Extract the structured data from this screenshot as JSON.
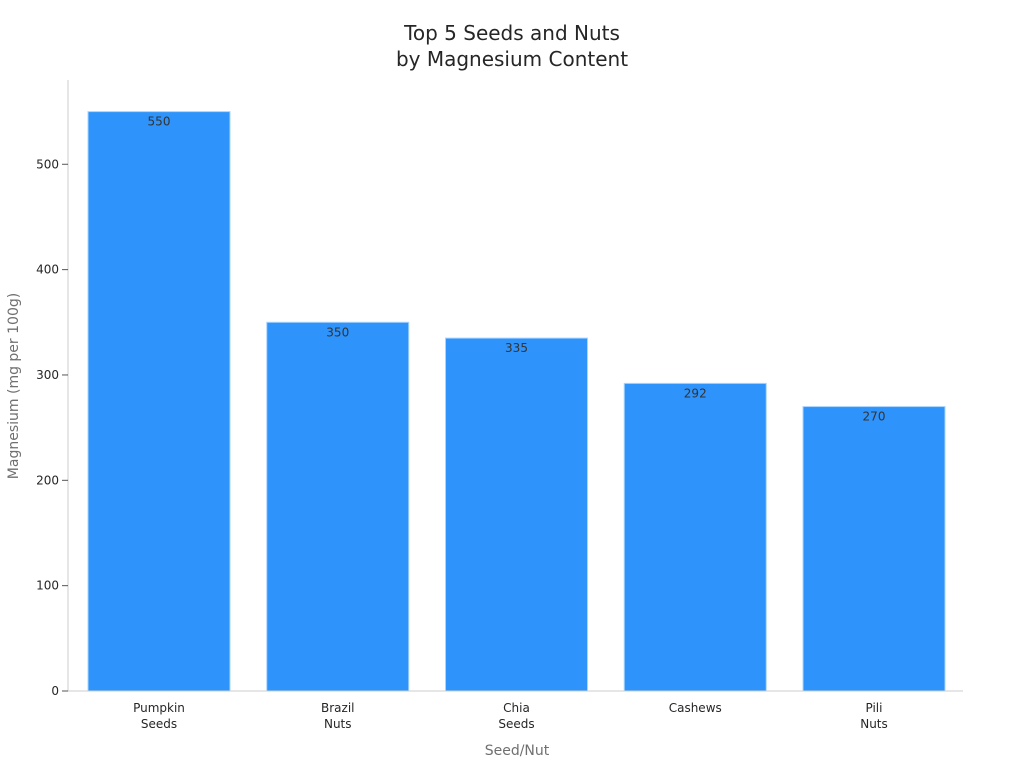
{
  "chart_data": {
    "type": "bar",
    "title": [
      "Top 5 Seeds and Nuts",
      "by Magnesium Content"
    ],
    "xlabel": "Seed/Nut",
    "ylabel": "Magnesium (mg per 100g)",
    "categories": [
      [
        "Pumpkin",
        "Seeds"
      ],
      [
        "Brazil",
        "Nuts"
      ],
      [
        "Chia",
        "Seeds"
      ],
      [
        "Cashews"
      ],
      [
        "Pili",
        "Nuts"
      ]
    ],
    "values": [
      550,
      350,
      335,
      292,
      270
    ],
    "data_labels": [
      "550",
      "350",
      "335",
      "292",
      "270"
    ],
    "ylim": [
      0,
      580
    ],
    "yticks": [
      0,
      100,
      200,
      300,
      400,
      500
    ],
    "ytick_labels": [
      "0",
      "100",
      "200",
      "300",
      "400",
      "500"
    ],
    "bar_color": "#2e93fa",
    "grid": false,
    "legend": "none"
  }
}
